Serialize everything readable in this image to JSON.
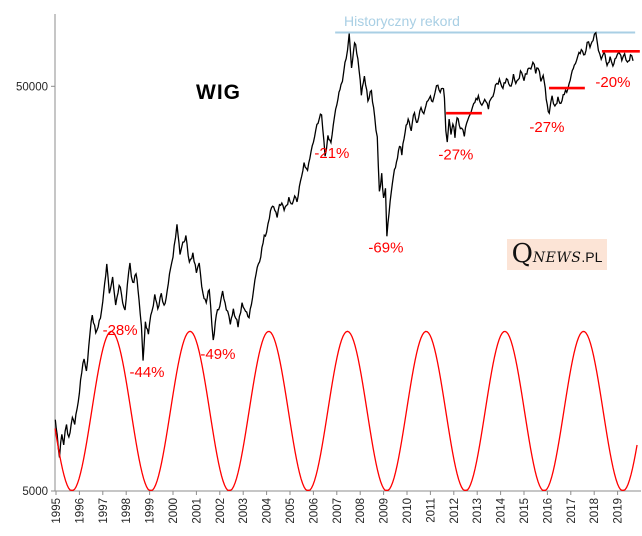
{
  "title": "WIG",
  "record_label": "Historyczny rekord",
  "watermark": {
    "q": "Q",
    "news": "NEWS",
    "pl": ".PL"
  },
  "colors": {
    "series": "#000000",
    "cycle": "#FF0000",
    "record_line": "#A9CFE4",
    "annotation": "#FF0000",
    "resistance": "#FF0000",
    "axis": "#8C8C8C",
    "tick_text": "#262626",
    "watermark_bg": "#FCE4D6"
  },
  "chart_data": {
    "type": "line",
    "title": "WIG",
    "y_axis": {
      "scale": "log",
      "min": 5000,
      "max": 75000,
      "ticks": [
        {
          "label": "50000",
          "value": 50000
        },
        {
          "label": "5000",
          "value": 5000
        }
      ]
    },
    "x_axis": {
      "tick_years": [
        1995,
        1996,
        1997,
        1998,
        1999,
        2000,
        2001,
        2002,
        2003,
        2004,
        2005,
        2006,
        2007,
        2008,
        2009,
        2010,
        2011,
        2012,
        2013,
        2014,
        2015,
        2016,
        2017,
        2018,
        2019
      ]
    },
    "series": [
      {
        "name": "WIG index",
        "color": "#000000",
        "points": [
          [
            1994.97,
            7500
          ],
          [
            1995.05,
            6900
          ],
          [
            1995.15,
            6050
          ],
          [
            1995.25,
            6900
          ],
          [
            1995.33,
            6500
          ],
          [
            1995.45,
            7300
          ],
          [
            1995.55,
            6800
          ],
          [
            1995.7,
            7600
          ],
          [
            1995.8,
            7300
          ],
          [
            1995.95,
            8300
          ],
          [
            1996.1,
            9800
          ],
          [
            1996.2,
            10600
          ],
          [
            1996.3,
            9900
          ],
          [
            1996.45,
            12200
          ],
          [
            1996.55,
            13600
          ],
          [
            1996.7,
            12300
          ],
          [
            1996.85,
            13200
          ],
          [
            1997.0,
            14700
          ],
          [
            1997.08,
            16300
          ],
          [
            1997.17,
            18200
          ],
          [
            1997.28,
            15400
          ],
          [
            1997.42,
            16900
          ],
          [
            1997.55,
            14400
          ],
          [
            1997.7,
            16100
          ],
          [
            1997.8,
            15300
          ],
          [
            1997.95,
            14000
          ],
          [
            1998.05,
            16200
          ],
          [
            1998.16,
            18300
          ],
          [
            1998.28,
            16400
          ],
          [
            1998.42,
            17200
          ],
          [
            1998.55,
            14800
          ],
          [
            1998.65,
            12800
          ],
          [
            1998.72,
            10500
          ],
          [
            1998.82,
            13100
          ],
          [
            1998.95,
            12200
          ],
          [
            1999.1,
            13900
          ],
          [
            1999.22,
            15300
          ],
          [
            1999.35,
            14100
          ],
          [
            1999.5,
            15400
          ],
          [
            1999.62,
            14400
          ],
          [
            1999.75,
            15600
          ],
          [
            1999.9,
            17800
          ],
          [
            2000.05,
            20200
          ],
          [
            2000.17,
            22800
          ],
          [
            2000.3,
            19200
          ],
          [
            2000.42,
            20600
          ],
          [
            2000.55,
            21400
          ],
          [
            2000.7,
            18400
          ],
          [
            2000.85,
            19400
          ],
          [
            2001.0,
            17300
          ],
          [
            2001.12,
            18300
          ],
          [
            2001.28,
            15400
          ],
          [
            2001.42,
            14600
          ],
          [
            2001.55,
            15700
          ],
          [
            2001.72,
            11800
          ],
          [
            2001.85,
            13600
          ],
          [
            2002.0,
            14300
          ],
          [
            2002.12,
            15600
          ],
          [
            2002.28,
            14000
          ],
          [
            2002.45,
            12900
          ],
          [
            2002.58,
            14100
          ],
          [
            2002.78,
            12700
          ],
          [
            2002.95,
            14600
          ],
          [
            2003.1,
            13900
          ],
          [
            2003.25,
            13400
          ],
          [
            2003.45,
            15800
          ],
          [
            2003.65,
            18200
          ],
          [
            2003.85,
            20500
          ],
          [
            2004.0,
            21800
          ],
          [
            2004.12,
            23600
          ],
          [
            2004.3,
            25200
          ],
          [
            2004.45,
            23700
          ],
          [
            2004.6,
            25400
          ],
          [
            2004.75,
            24700
          ],
          [
            2004.95,
            26600
          ],
          [
            2005.1,
            25600
          ],
          [
            2005.2,
            26800
          ],
          [
            2005.3,
            25900
          ],
          [
            2005.45,
            29200
          ],
          [
            2005.6,
            32400
          ],
          [
            2005.75,
            31000
          ],
          [
            2005.9,
            34500
          ],
          [
            2006.05,
            37500
          ],
          [
            2006.2,
            40500
          ],
          [
            2006.35,
            42500
          ],
          [
            2006.5,
            33600
          ],
          [
            2006.62,
            37800
          ],
          [
            2006.75,
            36300
          ],
          [
            2006.9,
            42000
          ],
          [
            2007.05,
            46500
          ],
          [
            2007.18,
            50500
          ],
          [
            2007.3,
            54500
          ],
          [
            2007.4,
            58500
          ],
          [
            2007.46,
            61500
          ],
          [
            2007.53,
            67500
          ],
          [
            2007.63,
            55500
          ],
          [
            2007.76,
            64000
          ],
          [
            2007.9,
            58500
          ],
          [
            2008.05,
            47500
          ],
          [
            2008.18,
            53000
          ],
          [
            2008.33,
            46000
          ],
          [
            2008.48,
            48800
          ],
          [
            2008.62,
            42000
          ],
          [
            2008.73,
            37500
          ],
          [
            2008.82,
            27500
          ],
          [
            2008.92,
            30500
          ],
          [
            2009.0,
            26500
          ],
          [
            2009.08,
            28000
          ],
          [
            2009.14,
            21300
          ],
          [
            2009.28,
            26000
          ],
          [
            2009.42,
            30000
          ],
          [
            2009.55,
            32500
          ],
          [
            2009.68,
            35500
          ],
          [
            2009.78,
            33800
          ],
          [
            2009.92,
            38500
          ],
          [
            2010.05,
            41500
          ],
          [
            2010.18,
            38800
          ],
          [
            2010.32,
            43000
          ],
          [
            2010.45,
            40800
          ],
          [
            2010.6,
            44300
          ],
          [
            2010.72,
            42800
          ],
          [
            2010.85,
            45800
          ],
          [
            2011.0,
            47300
          ],
          [
            2011.1,
            45800
          ],
          [
            2011.2,
            48300
          ],
          [
            2011.32,
            50300
          ],
          [
            2011.42,
            48300
          ],
          [
            2011.52,
            49400
          ],
          [
            2011.6,
            46800
          ],
          [
            2011.66,
            38800
          ],
          [
            2011.72,
            36400
          ],
          [
            2011.8,
            41500
          ],
          [
            2011.88,
            38000
          ],
          [
            2011.96,
            40300
          ],
          [
            2012.05,
            37300
          ],
          [
            2012.14,
            41800
          ],
          [
            2012.28,
            39300
          ],
          [
            2012.45,
            37600
          ],
          [
            2012.6,
            41300
          ],
          [
            2012.75,
            43400
          ],
          [
            2012.9,
            45600
          ],
          [
            2013.05,
            47400
          ],
          [
            2013.2,
            44900
          ],
          [
            2013.32,
            46400
          ],
          [
            2013.48,
            43900
          ],
          [
            2013.62,
            46900
          ],
          [
            2013.78,
            50400
          ],
          [
            2013.95,
            52100
          ],
          [
            2014.1,
            49400
          ],
          [
            2014.25,
            52200
          ],
          [
            2014.4,
            50100
          ],
          [
            2014.55,
            53600
          ],
          [
            2014.7,
            51600
          ],
          [
            2014.85,
            54600
          ],
          [
            2015.0,
            51600
          ],
          [
            2015.12,
            53600
          ],
          [
            2015.25,
            55400
          ],
          [
            2015.38,
            57300
          ],
          [
            2015.5,
            53800
          ],
          [
            2015.6,
            55400
          ],
          [
            2015.72,
            51400
          ],
          [
            2015.82,
            53200
          ],
          [
            2015.95,
            46400
          ],
          [
            2016.08,
            42900
          ],
          [
            2016.2,
            47400
          ],
          [
            2016.32,
            44700
          ],
          [
            2016.45,
            47100
          ],
          [
            2016.58,
            45400
          ],
          [
            2016.72,
            47700
          ],
          [
            2016.88,
            49400
          ],
          [
            2017.02,
            53400
          ],
          [
            2017.15,
            56400
          ],
          [
            2017.3,
            59400
          ],
          [
            2017.45,
            61600
          ],
          [
            2017.55,
            59800
          ],
          [
            2017.7,
            64200
          ],
          [
            2017.82,
            62400
          ],
          [
            2017.95,
            64800
          ],
          [
            2018.07,
            67800
          ],
          [
            2018.18,
            61300
          ],
          [
            2018.3,
            58300
          ],
          [
            2018.42,
            60700
          ],
          [
            2018.55,
            56300
          ],
          [
            2018.68,
            59200
          ],
          [
            2018.8,
            56100
          ],
          [
            2018.93,
            58700
          ],
          [
            2019.05,
            60700
          ],
          [
            2019.18,
            57900
          ],
          [
            2019.3,
            60200
          ],
          [
            2019.42,
            57400
          ],
          [
            2019.55,
            59800
          ],
          [
            2019.66,
            57800
          ]
        ]
      }
    ],
    "cycle_overlay": {
      "name": "cycle (sine)",
      "type": "sine",
      "color": "#FF0000",
      "trough_year": 1995.684,
      "period_years": 3.363,
      "trough_value": 5000,
      "peak_value": 12400,
      "year_start": 1994.96,
      "year_end": 2019.85
    },
    "record_line": {
      "label": "Historyczny rekord",
      "value": 67900,
      "year_start": 2006.93,
      "year_end": 2019.75,
      "color": "#A9CFE4"
    },
    "resistance_lines": [
      {
        "value": 42900,
        "year_start": 2011.67,
        "year_end": 2013.2
      },
      {
        "value": 49500,
        "year_start": 2016.07,
        "year_end": 2017.6
      },
      {
        "value": 61000,
        "year_start": 2018.33,
        "year_end": 2019.95
      }
    ],
    "drawdown_labels": [
      {
        "text": "-28%",
        "year": 1997.74,
        "value": 12500
      },
      {
        "text": "-44%",
        "year": 1998.89,
        "value": 9850
      },
      {
        "text": "-49%",
        "year": 2001.92,
        "value": 10900
      },
      {
        "text": "-21%",
        "year": 2006.79,
        "value": 34200
      },
      {
        "text": "-69%",
        "year": 2009.1,
        "value": 20000
      },
      {
        "text": "-27%",
        "year": 2012.09,
        "value": 33900
      },
      {
        "text": "-27%",
        "year": 2015.98,
        "value": 39700
      },
      {
        "text": "-20%",
        "year": 2018.8,
        "value": 51200
      }
    ]
  }
}
